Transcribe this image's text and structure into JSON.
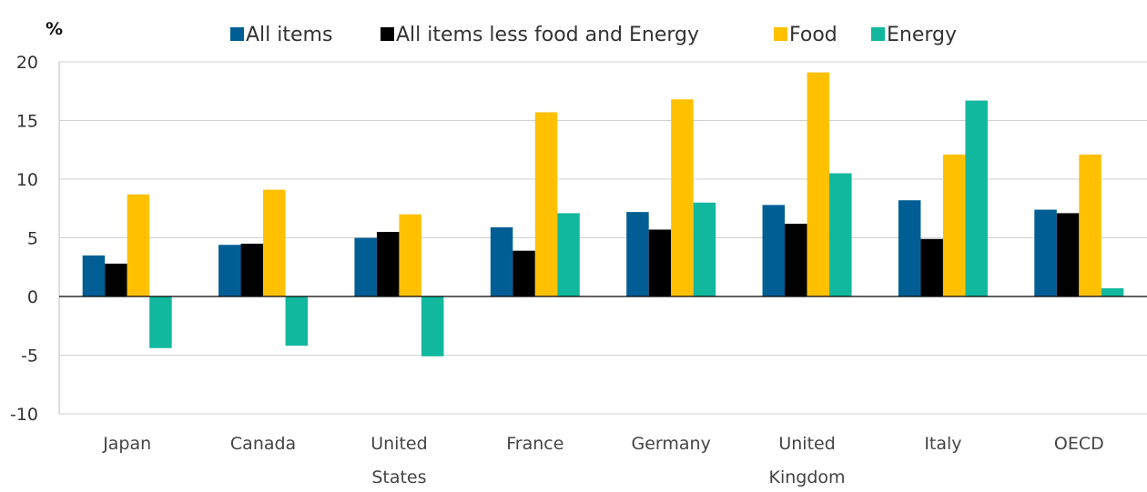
{
  "chart_data": {
    "type": "bar",
    "ylabel": "%",
    "ylim": [
      -10,
      20
    ],
    "yticks": [
      20,
      15,
      10,
      5,
      0,
      -5,
      -10
    ],
    "grid": true,
    "legend_position": "top",
    "categories": [
      [
        "Japan"
      ],
      [
        "Canada"
      ],
      [
        "United",
        "States"
      ],
      [
        "France"
      ],
      [
        "Germany"
      ],
      [
        "United",
        "Kingdom"
      ],
      [
        "Italy"
      ],
      [
        "OECD"
      ]
    ],
    "series": [
      {
        "name": "All items",
        "color": "#005E95",
        "values": [
          3.5,
          4.4,
          5.0,
          5.9,
          7.2,
          7.8,
          8.2,
          7.4
        ]
      },
      {
        "name": "All items less food and Energy",
        "color": "#000000",
        "values": [
          2.8,
          4.5,
          5.5,
          3.9,
          5.7,
          6.2,
          4.9,
          7.1
        ]
      },
      {
        "name": "Food",
        "color": "#FFC000",
        "values": [
          8.7,
          9.1,
          7.0,
          15.7,
          16.8,
          19.1,
          12.1,
          12.1
        ]
      },
      {
        "name": "Energy",
        "color": "#11B89E",
        "values": [
          -4.4,
          -4.2,
          -5.1,
          7.1,
          8.0,
          10.5,
          16.7,
          0.7
        ]
      }
    ]
  }
}
